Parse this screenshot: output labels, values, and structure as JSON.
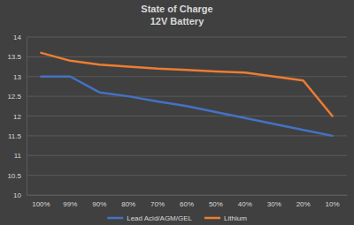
{
  "chart_data": {
    "type": "line",
    "title": "State of Charge",
    "subtitle": "12V Battery",
    "categories": [
      "100%",
      "99%",
      "90%",
      "80%",
      "70%",
      "60%",
      "50%",
      "40%",
      "30%",
      "20%",
      "10%"
    ],
    "series": [
      {
        "name": "Lead Acid/AGM/GEL",
        "color": "#4472c4",
        "values": [
          13.0,
          13.0,
          12.6,
          12.5,
          12.37,
          12.25,
          12.1,
          11.95,
          11.8,
          11.65,
          11.5
        ]
      },
      {
        "name": "Lithium",
        "color": "#ed7d31",
        "values": [
          13.6,
          13.4,
          13.3,
          13.25,
          13.2,
          13.17,
          13.13,
          13.1,
          13.0,
          12.9,
          12.0
        ]
      }
    ],
    "ylim": [
      10,
      14
    ],
    "yticks": [
      10,
      10.5,
      11,
      11.5,
      12,
      12.5,
      13,
      13.5,
      14
    ],
    "grid": true,
    "legend": "bottom"
  }
}
